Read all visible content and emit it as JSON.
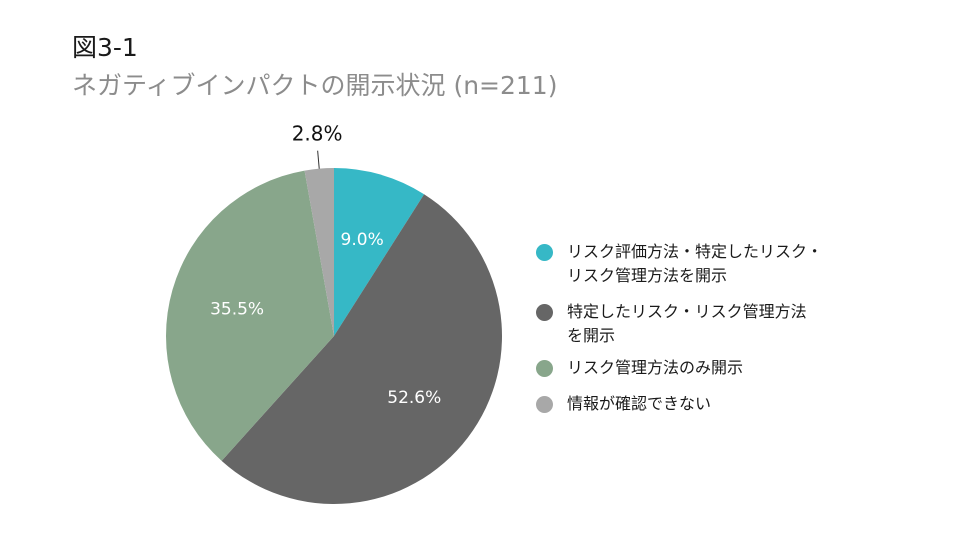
{
  "figure": {
    "label": "図3-1",
    "title": "ネガティブインパクトの開示状況 (n=211)"
  },
  "chart_data": {
    "type": "pie",
    "title": "ネガティブインパクトの開示状況 (n=211)",
    "slices": [
      {
        "label": "リスク評価方法・特定したリスク・\nリスク管理方法を開示",
        "value": 9.0,
        "display": "9.0%",
        "color": "#36b8c6",
        "label_color": "#ffffff"
      },
      {
        "label": "特定したリスク・リスク管理方法\nを開示",
        "value": 52.6,
        "display": "52.6%",
        "color": "#666666",
        "label_color": "#ffffff"
      },
      {
        "label": "リスク管理方法のみ開示",
        "value": 35.5,
        "display": "35.5%",
        "color": "#88a68b",
        "label_color": "#ffffff"
      },
      {
        "label": "情報が確認できない",
        "value": 2.8,
        "display": "2.8%",
        "color": "#a8a8a8",
        "label_color": "#111111"
      }
    ],
    "legend_position": "right",
    "start_angle": "12 o'clock",
    "direction": "clockwise"
  }
}
